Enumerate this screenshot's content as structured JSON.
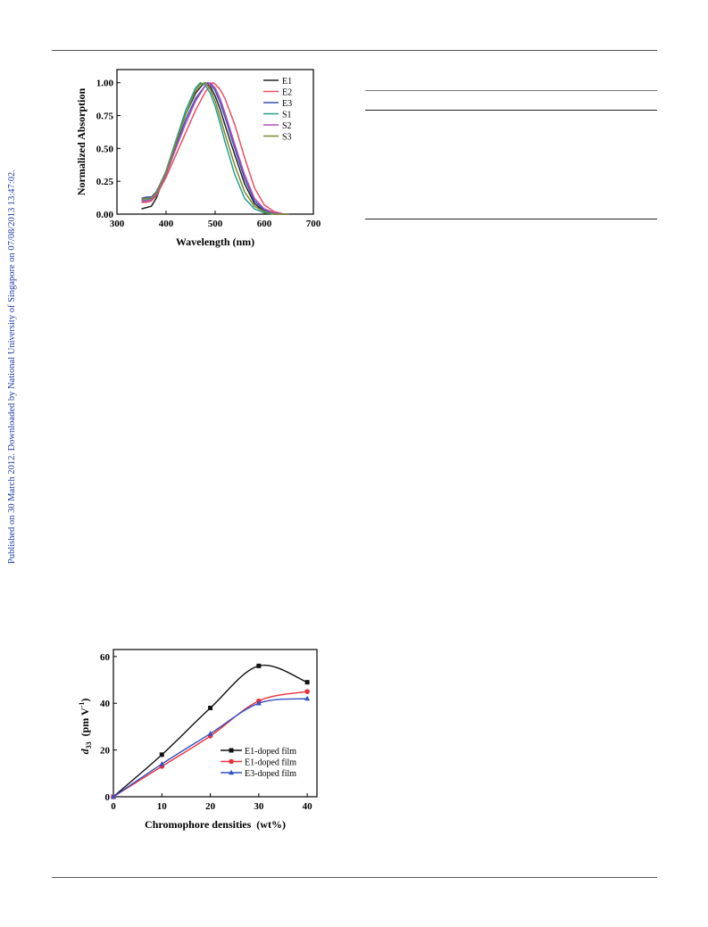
{
  "side_note": {
    "text": "Published on 30 March 2012. Downloaded by National University of Singapore on 07/08/2013 13:47:02.",
    "color": "#1f3aa8"
  },
  "chart_data": [
    {
      "type": "line",
      "title": "",
      "xlabel": "Wavelength (nm)",
      "ylabel": "Normalized Absorption",
      "xlim": [
        300,
        700
      ],
      "ylim": [
        0,
        1.1
      ],
      "x_ticks": [
        "300",
        "400",
        "500",
        "600",
        "700"
      ],
      "y_ticks": [
        "0.00",
        "0.25",
        "0.50",
        "0.75",
        "1.00"
      ],
      "legend": "top-right",
      "series": [
        {
          "name": "E1",
          "color": "#222222",
          "x": [
            350,
            360,
            370,
            380,
            400,
            420,
            440,
            460,
            475,
            480,
            490,
            500,
            510,
            520,
            540,
            560,
            580,
            600,
            620,
            640,
            650
          ],
          "y": [
            0.04,
            0.05,
            0.06,
            0.12,
            0.32,
            0.55,
            0.76,
            0.92,
            0.99,
            1.0,
            0.97,
            0.9,
            0.8,
            0.68,
            0.45,
            0.23,
            0.08,
            0.02,
            0.005,
            0.0,
            0.0
          ]
        },
        {
          "name": "E2",
          "color": "#e8505b",
          "x": [
            350,
            360,
            370,
            380,
            400,
            420,
            440,
            460,
            480,
            490,
            495,
            500,
            510,
            520,
            540,
            560,
            580,
            600,
            620,
            640,
            650
          ],
          "y": [
            0.09,
            0.09,
            0.1,
            0.14,
            0.28,
            0.45,
            0.62,
            0.79,
            0.93,
            0.98,
            1.0,
            0.99,
            0.95,
            0.88,
            0.68,
            0.43,
            0.2,
            0.07,
            0.02,
            0.0,
            0.0
          ]
        },
        {
          "name": "E3",
          "color": "#3c4fb0",
          "x": [
            350,
            360,
            370,
            380,
            400,
            420,
            440,
            460,
            480,
            485,
            490,
            500,
            510,
            520,
            540,
            560,
            580,
            600,
            620,
            640,
            650
          ],
          "y": [
            0.12,
            0.13,
            0.13,
            0.17,
            0.32,
            0.52,
            0.72,
            0.88,
            0.98,
            1.0,
            0.99,
            0.94,
            0.85,
            0.74,
            0.5,
            0.27,
            0.1,
            0.03,
            0.01,
            0.0,
            0.0
          ]
        },
        {
          "name": "S1",
          "color": "#2a9d8f",
          "x": [
            350,
            360,
            370,
            380,
            400,
            420,
            440,
            460,
            470,
            480,
            490,
            500,
            510,
            520,
            540,
            560,
            580,
            600,
            620,
            640,
            650
          ],
          "y": [
            0.1,
            0.11,
            0.12,
            0.16,
            0.33,
            0.56,
            0.79,
            0.96,
            1.0,
            0.98,
            0.92,
            0.82,
            0.69,
            0.55,
            0.3,
            0.12,
            0.04,
            0.01,
            0.0,
            0.0,
            0.0
          ]
        },
        {
          "name": "S2",
          "color": "#b04fc0",
          "x": [
            350,
            360,
            370,
            380,
            400,
            420,
            440,
            460,
            480,
            490,
            500,
            510,
            520,
            540,
            560,
            580,
            600,
            620,
            640,
            650
          ],
          "y": [
            0.1,
            0.1,
            0.11,
            0.15,
            0.3,
            0.5,
            0.69,
            0.86,
            0.98,
            1.0,
            0.96,
            0.88,
            0.77,
            0.53,
            0.3,
            0.12,
            0.04,
            0.01,
            0.0,
            0.0
          ]
        },
        {
          "name": "S3",
          "color": "#7a8a2a",
          "x": [
            350,
            360,
            370,
            380,
            400,
            420,
            440,
            460,
            470,
            480,
            490,
            500,
            510,
            520,
            540,
            560,
            580,
            600,
            620,
            640,
            650
          ],
          "y": [
            0.11,
            0.12,
            0.12,
            0.16,
            0.32,
            0.54,
            0.76,
            0.94,
            0.99,
            1.0,
            0.95,
            0.86,
            0.74,
            0.61,
            0.37,
            0.17,
            0.06,
            0.02,
            0.0,
            0.0,
            0.0
          ]
        }
      ]
    },
    {
      "type": "line",
      "title": "",
      "xlabel": "Chromophore densities  (wt%)",
      "ylabel_main": "d",
      "ylabel_sub": "33",
      "ylabel_rest": "  (pm V",
      "ylabel_sup": "-1",
      "ylabel_end": ")",
      "xlim": [
        0,
        42
      ],
      "ylim": [
        0,
        63
      ],
      "x_ticks": [
        "0",
        "10",
        "20",
        "30",
        "40"
      ],
      "y_ticks": [
        "0",
        "20",
        "40",
        "60"
      ],
      "legend": "bottom-right",
      "series": [
        {
          "name": "E1-doped film",
          "color": "#111111",
          "marker": "square",
          "x": [
            0,
            10,
            20,
            30,
            40
          ],
          "y": [
            0,
            18,
            38,
            56,
            49
          ]
        },
        {
          "name": "E1-doped film",
          "color": "#e8303b",
          "marker": "circle",
          "x": [
            0,
            10,
            20,
            30,
            40
          ],
          "y": [
            0,
            13,
            26,
            41,
            45
          ]
        },
        {
          "name": "E3-doped film",
          "color": "#3550c0",
          "marker": "triangle",
          "x": [
            0,
            10,
            20,
            30,
            40
          ],
          "y": [
            0,
            14,
            27,
            40,
            42
          ]
        }
      ]
    }
  ]
}
